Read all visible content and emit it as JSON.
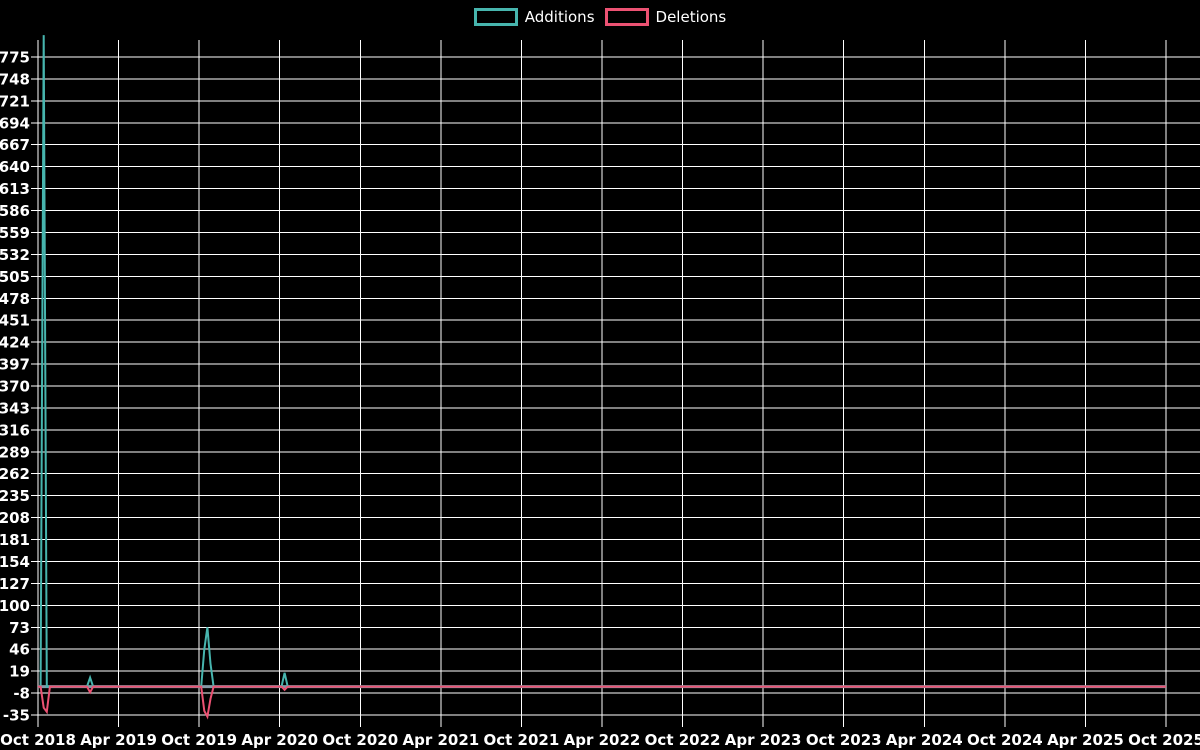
{
  "chart_data": {
    "type": "line",
    "title": "",
    "xlabel": "",
    "ylabel": "",
    "background_color": "#000000",
    "gridline_color": "#ffffff",
    "zero_line_color": "#8698a6",
    "grid": true,
    "legend_position": "top-center",
    "x_start": "2018-10-01",
    "x_end": "2025-10-01",
    "x_ticks": [
      "Oct 2018",
      "Apr 2019",
      "Oct 2019",
      "Apr 2020",
      "Oct 2020",
      "Apr 2021",
      "Oct 2021",
      "Apr 2022",
      "Oct 2022",
      "Apr 2023",
      "Oct 2023",
      "Apr 2024",
      "Oct 2024",
      "Apr 2025",
      "Oct 2025"
    ],
    "y_ticks": [
      775,
      748,
      721,
      694,
      667,
      640,
      613,
      586,
      559,
      532,
      505,
      478,
      451,
      424,
      397,
      370,
      343,
      316,
      289,
      262,
      235,
      208,
      181,
      154,
      127,
      100,
      73,
      46,
      19,
      -8,
      -35
    ],
    "ylim": [
      -35,
      775
    ],
    "y_plot_max": 802,
    "note": "Weekly series; all weeks not listed below are 0 for both series (flat zero line).",
    "series": [
      {
        "name": "Additions",
        "color": "#47b5ae",
        "points": [
          [
            "2018-10-01",
            0
          ],
          [
            "2018-10-07",
            0
          ],
          [
            "2018-10-14",
            802
          ],
          [
            "2018-10-21",
            0
          ],
          [
            "2019-01-20",
            0
          ],
          [
            "2019-01-27",
            11
          ],
          [
            "2019-02-03",
            0
          ],
          [
            "2019-10-06",
            0
          ],
          [
            "2019-10-13",
            46
          ],
          [
            "2019-10-20",
            73
          ],
          [
            "2019-10-27",
            28
          ],
          [
            "2019-11-03",
            0
          ],
          [
            "2020-04-05",
            0
          ],
          [
            "2020-04-12",
            17
          ],
          [
            "2020-04-19",
            0
          ],
          [
            "2025-10-01",
            0
          ]
        ]
      },
      {
        "name": "Deletions",
        "color": "#ec5273",
        "points": [
          [
            "2018-10-01",
            0
          ],
          [
            "2018-10-07",
            0
          ],
          [
            "2018-10-14",
            -26
          ],
          [
            "2018-10-21",
            -31
          ],
          [
            "2018-10-28",
            0
          ],
          [
            "2019-01-20",
            0
          ],
          [
            "2019-01-27",
            -7
          ],
          [
            "2019-02-03",
            0
          ],
          [
            "2019-10-06",
            0
          ],
          [
            "2019-10-13",
            -30
          ],
          [
            "2019-10-20",
            -37
          ],
          [
            "2019-10-27",
            -15
          ],
          [
            "2019-11-03",
            0
          ],
          [
            "2020-04-05",
            0
          ],
          [
            "2020-04-12",
            -4
          ],
          [
            "2020-04-19",
            0
          ],
          [
            "2025-10-01",
            0
          ]
        ]
      }
    ]
  }
}
